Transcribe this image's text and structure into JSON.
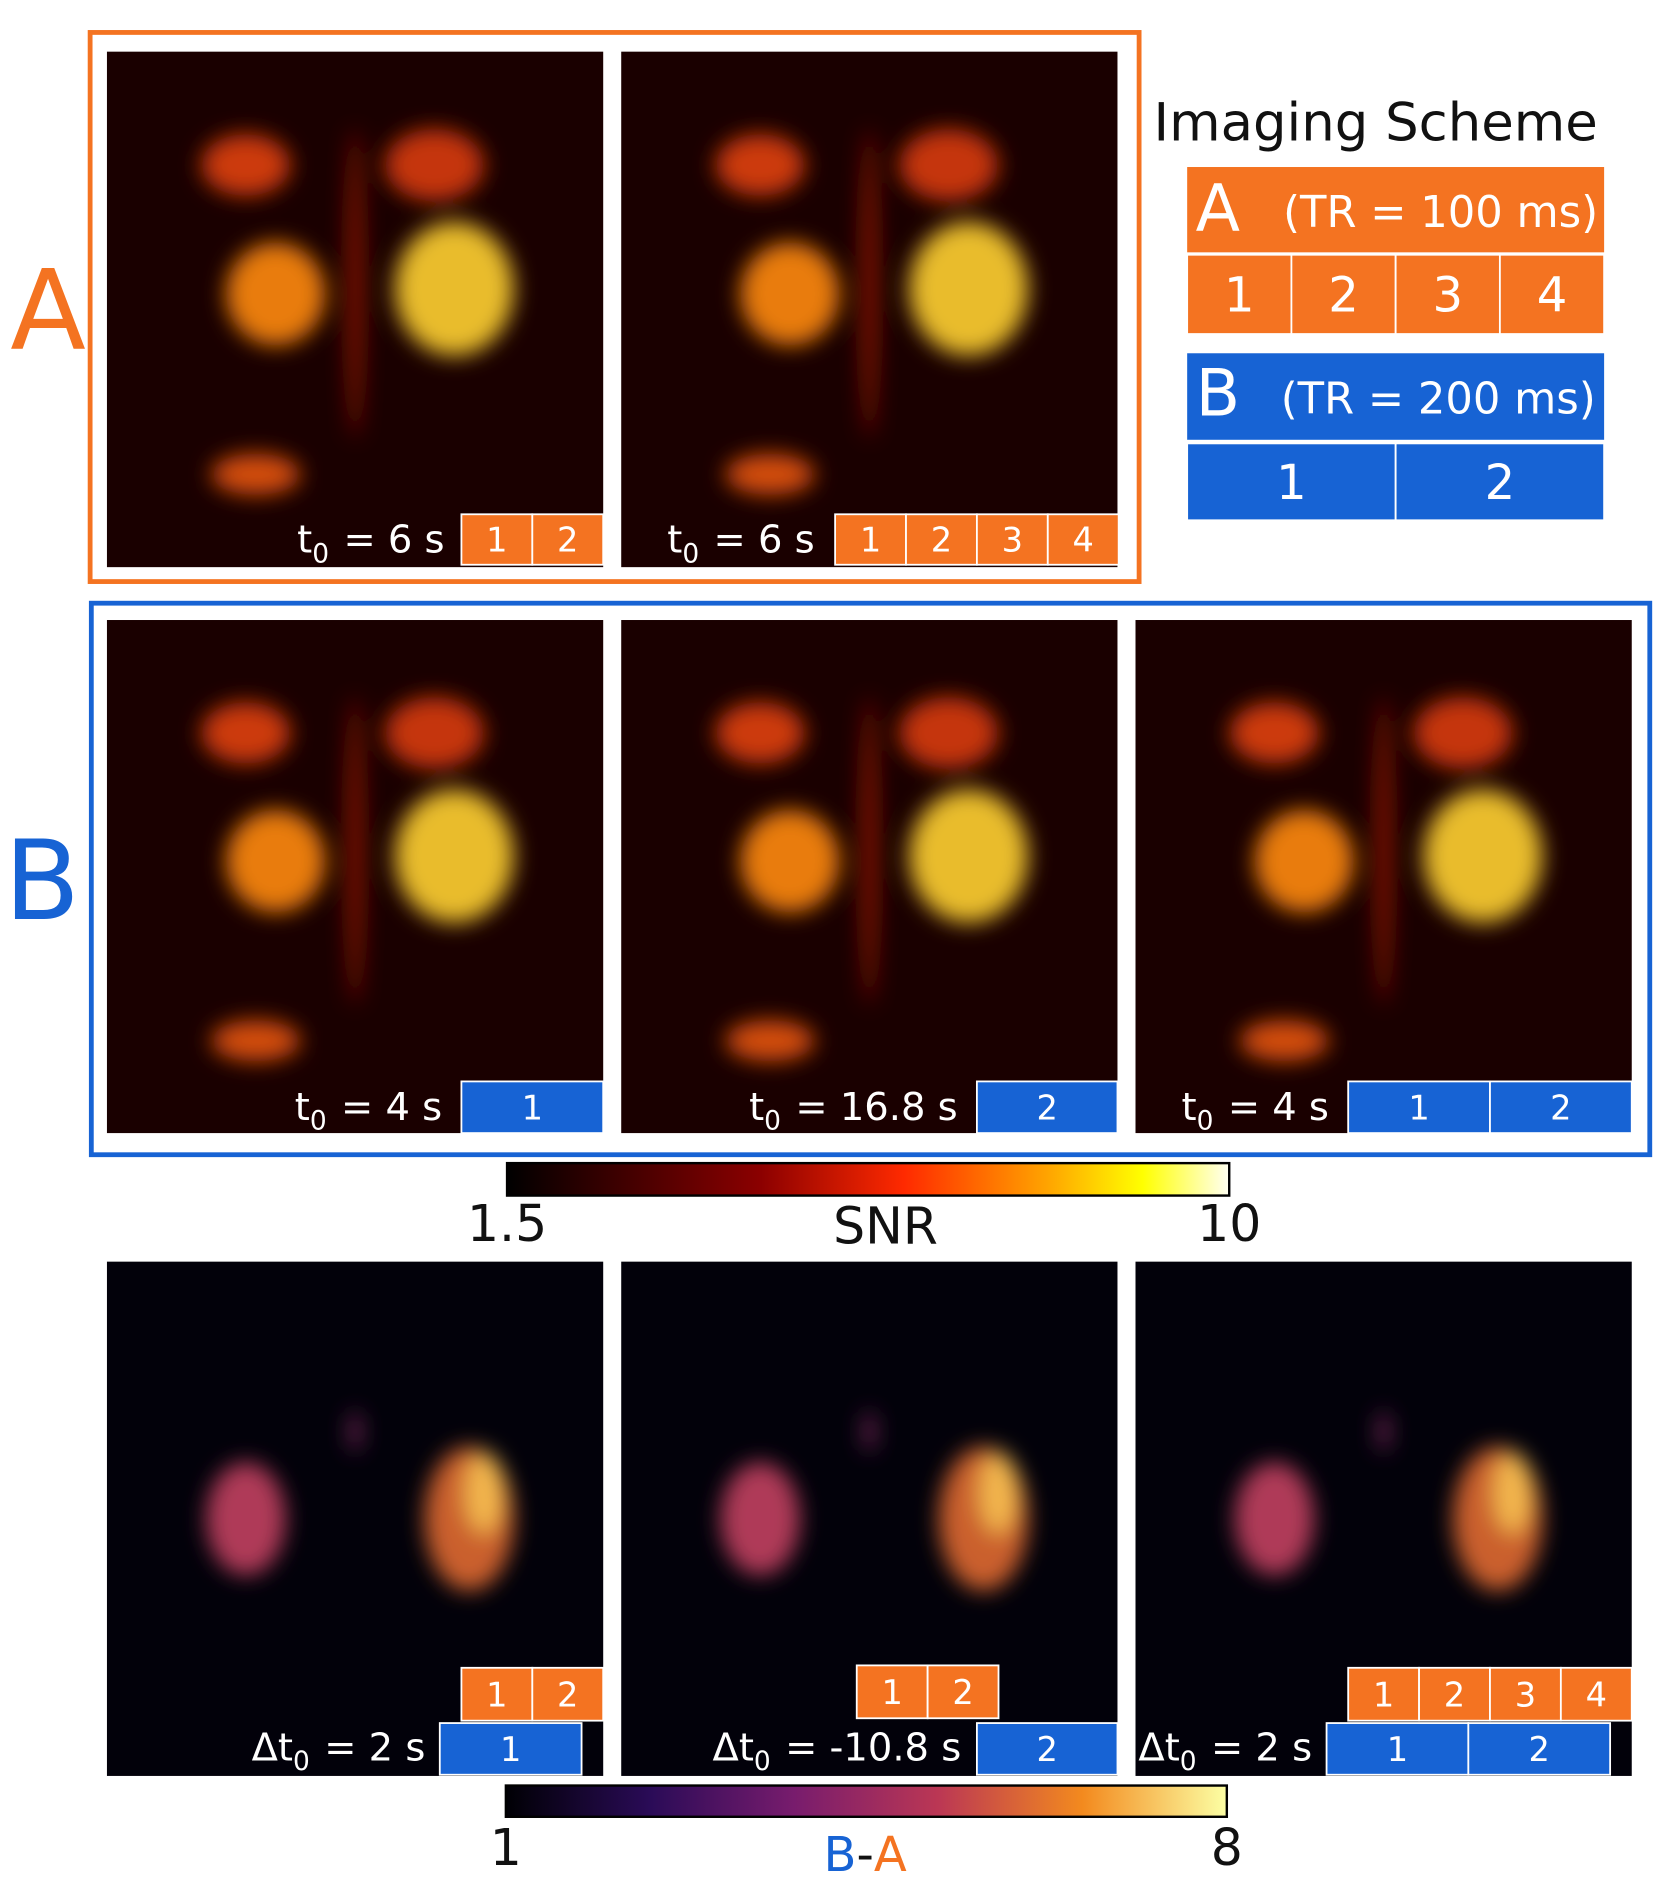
{
  "row_labels": {
    "a": "A",
    "b": "B"
  },
  "scheme": {
    "title": "Imaging Scheme",
    "a": {
      "letter": "A",
      "tr": "(TR = 100 ms)",
      "blocks": [
        1,
        2,
        3,
        4
      ]
    },
    "b": {
      "letter": "B",
      "tr": "(TR = 200 ms)",
      "blocks": [
        1,
        2
      ]
    }
  },
  "rows": [
    {
      "images": [
        {
          "label": {
            "symbol": "t",
            "sub": "0",
            "text": "= 6 s"
          },
          "a_blocks": [
            1,
            2
          ]
        },
        {
          "label": {
            "symbol": "t",
            "sub": "0",
            "text": "= 6 s"
          },
          "a_blocks": [
            1,
            2,
            3,
            4
          ]
        }
      ]
    },
    {
      "images": [
        {
          "label": {
            "symbol": "t",
            "sub": "0",
            "text": "= 4 s"
          },
          "b_blocks": [
            1
          ]
        },
        {
          "label": {
            "symbol": "t",
            "sub": "0",
            "text": "= 16.8 s"
          },
          "b_blocks": [
            2
          ]
        },
        {
          "label": {
            "symbol": "t",
            "sub": "0",
            "text": "= 4 s"
          },
          "b_blocks": [
            1,
            2
          ]
        }
      ]
    },
    {
      "images": [
        {
          "label": {
            "symbol": "Δt",
            "sub": "0",
            "text": "= 2 s"
          },
          "a_blocks": [
            1,
            2
          ],
          "b_blocks": [
            1
          ]
        },
        {
          "label": {
            "symbol": "Δt",
            "sub": "0",
            "text": "= -10.8 s"
          },
          "a_blocks": [
            1,
            2
          ],
          "b_blocks": [
            2
          ]
        },
        {
          "label": {
            "symbol": "Δt",
            "sub": "0",
            "text": "= 2 s"
          },
          "a_blocks": [
            1,
            2,
            3,
            4
          ],
          "b_blocks": [
            1,
            2
          ]
        }
      ]
    }
  ],
  "colorbars": [
    {
      "min": 1.5,
      "max": 10,
      "label": "SNR"
    },
    {
      "min": 1,
      "max": 8,
      "label": [
        "B",
        "-",
        "A"
      ]
    }
  ]
}
